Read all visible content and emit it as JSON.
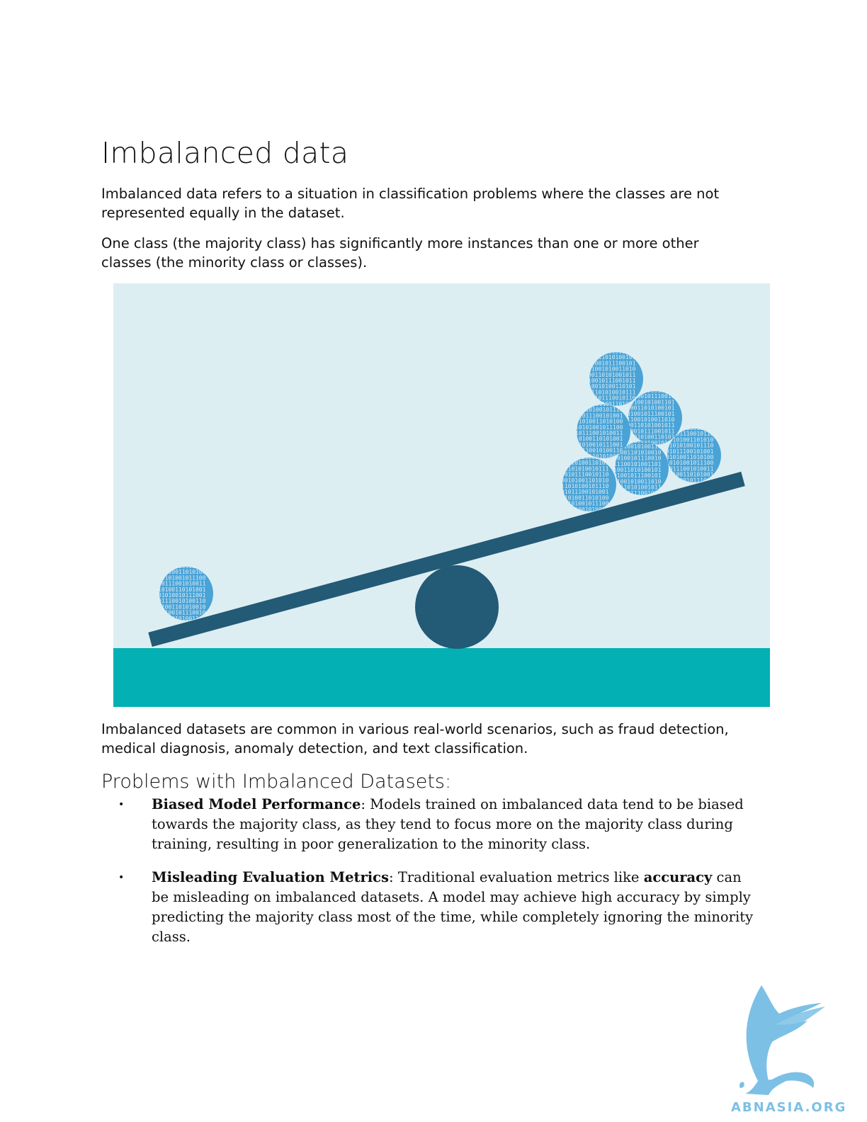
{
  "title": "Imbalanced data",
  "intro": {
    "p1": "Imbalanced data refers to a situation in classification problems where the classes are not represented equally in the dataset.",
    "p2": "One class (the majority class) has significantly more instances than one or more other classes (the minority class or classes)."
  },
  "figure": {
    "colors": {
      "sky": "#ddeef3",
      "ground": "#03b0b4",
      "beam": "#235a76",
      "ball": "#4aa3d6"
    },
    "binary_text": "0101110010100110101001011100101101001101"
  },
  "after_figure": "Imbalanced datasets are common in various real-world scenarios, such as fraud detection, medical diagnosis, anomaly detection, and text classification.",
  "section": {
    "heading": "Problems with Imbalanced Datasets:",
    "bullets": [
      {
        "term": "Biased Model Performance",
        "text": ": Models trained on imbalanced data tend to be biased towards the majority class, as they tend to focus more on the majority class during training, resulting in poor generalization to the minority class."
      },
      {
        "term": "Misleading Evaluation Metrics",
        "text_before": ": Traditional evaluation metrics like ",
        "emphasis": "accuracy",
        "text_after": " can be misleading on imbalanced datasets. A model may achieve high accuracy by simply predicting the majority class most of the time, while completely ignoring the minority class."
      }
    ]
  },
  "logo": {
    "text": "ABNASIA.ORG",
    "color": "#7cc0e6"
  }
}
